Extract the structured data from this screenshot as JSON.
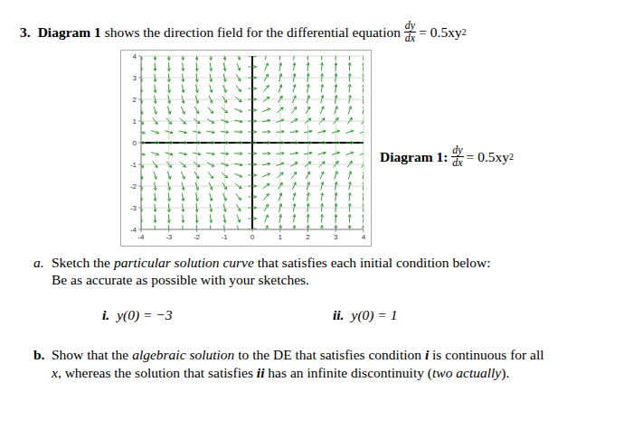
{
  "question": {
    "number": "3.",
    "segments": [
      {
        "text": "Diagram 1",
        "style": "bold"
      },
      {
        "text": " shows the direction field for the differential equation ",
        "style": "plain"
      }
    ],
    "equation": {
      "numerator": "dy",
      "denominator": "dx",
      "rhs": "= 0.5xy",
      "exponent": "2"
    }
  },
  "diagram_label": {
    "segments": [
      {
        "text": "Diagram 1: ",
        "style": "bold"
      }
    ],
    "equation": {
      "numerator": "dy",
      "denominator": "dx",
      "rhs": "= 0.5xy",
      "exponent": "2"
    }
  },
  "chart_data": {
    "type": "slope_field",
    "color": "#3a9a3a",
    "marker": "arrow",
    "grid": true,
    "x": [
      -4,
      -3.5,
      -3,
      -2.5,
      -2,
      -1.5,
      -1,
      -0.5,
      0,
      0.5,
      1,
      1.5,
      2,
      2.5,
      3,
      3.5,
      4
    ],
    "y": [
      4,
      3.5,
      3,
      2.5,
      2,
      1.5,
      1,
      0.5,
      0,
      -0.5,
      -1,
      -1.5,
      -2,
      -2.5,
      -3,
      -3.5,
      -4
    ],
    "slopes": [
      [
        -32,
        -28,
        -24,
        -20,
        -16,
        -12,
        -8,
        -4,
        0,
        4,
        8,
        12,
        16,
        20,
        24,
        28,
        32
      ],
      [
        -24.5,
        -21.44,
        -18.38,
        -15.31,
        -12.25,
        -9.19,
        -6.13,
        -3.06,
        0,
        3.06,
        6.13,
        9.19,
        12.25,
        15.31,
        18.38,
        21.44,
        24.5
      ],
      [
        -18,
        -15.75,
        -13.5,
        -11.25,
        -9,
        -6.75,
        -4.5,
        -2.25,
        0,
        2.25,
        4.5,
        6.75,
        9,
        11.25,
        13.5,
        15.75,
        18
      ],
      [
        -12.5,
        -10.94,
        -9.38,
        -7.81,
        -6.25,
        -4.69,
        -3.13,
        -1.56,
        0,
        1.56,
        3.13,
        4.69,
        6.25,
        7.81,
        9.38,
        10.94,
        12.5
      ],
      [
        -8,
        -7,
        -6,
        -5,
        -4,
        -3,
        -2,
        -1,
        0,
        1,
        2,
        3,
        4,
        5,
        6,
        7,
        8
      ],
      [
        -4.5,
        -3.94,
        -3.38,
        -2.81,
        -2.25,
        -1.69,
        -1.13,
        -0.56,
        0,
        0.56,
        1.13,
        1.69,
        2.25,
        2.81,
        3.38,
        3.94,
        4.5
      ],
      [
        -2,
        -1.75,
        -1.5,
        -1.25,
        -1,
        -0.75,
        -0.5,
        -0.25,
        0,
        0.25,
        0.5,
        0.75,
        1,
        1.25,
        1.5,
        1.75,
        2
      ],
      [
        -0.5,
        -0.44,
        -0.38,
        -0.31,
        -0.25,
        -0.19,
        -0.13,
        -0.06,
        0,
        0.06,
        0.13,
        0.19,
        0.25,
        0.31,
        0.38,
        0.44,
        0.5
      ],
      [
        0,
        0,
        0,
        0,
        0,
        0,
        0,
        0,
        0,
        0,
        0,
        0,
        0,
        0,
        0,
        0,
        0
      ],
      [
        -0.5,
        -0.44,
        -0.38,
        -0.31,
        -0.25,
        -0.19,
        -0.13,
        -0.06,
        0,
        0.06,
        0.13,
        0.19,
        0.25,
        0.31,
        0.38,
        0.44,
        0.5
      ],
      [
        -2,
        -1.75,
        -1.5,
        -1.25,
        -1,
        -0.75,
        -0.5,
        -0.25,
        0,
        0.25,
        0.5,
        0.75,
        1,
        1.25,
        1.5,
        1.75,
        2
      ],
      [
        -4.5,
        -3.94,
        -3.38,
        -2.81,
        -2.25,
        -1.69,
        -1.13,
        -0.56,
        0,
        0.56,
        1.13,
        1.69,
        2.25,
        2.81,
        3.38,
        3.94,
        4.5
      ],
      [
        -8,
        -7,
        -6,
        -5,
        -4,
        -3,
        -2,
        -1,
        0,
        1,
        2,
        3,
        4,
        5,
        6,
        7,
        8
      ],
      [
        -12.5,
        -10.94,
        -9.38,
        -7.81,
        -6.25,
        -4.69,
        -3.13,
        -1.56,
        0,
        1.56,
        3.13,
        4.69,
        6.25,
        7.81,
        9.38,
        10.94,
        12.5
      ],
      [
        -18,
        -15.75,
        -13.5,
        -11.25,
        -9,
        -6.75,
        -4.5,
        -2.25,
        0,
        2.25,
        4.5,
        6.75,
        9,
        11.25,
        13.5,
        15.75,
        18
      ],
      [
        -24.5,
        -21.44,
        -18.38,
        -15.31,
        -12.25,
        -9.19,
        -6.13,
        -3.06,
        0,
        3.06,
        6.13,
        9.19,
        12.25,
        15.31,
        18.38,
        21.44,
        24.5
      ],
      [
        -32,
        -28,
        -24,
        -20,
        -16,
        -12,
        -8,
        -4,
        0,
        4,
        8,
        12,
        16,
        20,
        24,
        28,
        32
      ]
    ],
    "xlim": [
      -4,
      4
    ],
    "ylim": [
      -4,
      4
    ],
    "xticks": [
      -4,
      -3,
      -2,
      -1,
      0,
      1,
      2,
      3,
      4
    ],
    "yticks": [
      -4,
      -3,
      -2,
      -1,
      0,
      1,
      2,
      3,
      4
    ]
  },
  "part_a": {
    "label": "a.",
    "lines": [
      [
        {
          "text": "Sketch the ",
          "style": "plain"
        },
        {
          "text": "particular solution curve",
          "style": "italic"
        },
        {
          "text": " that satisfies each initial condition below:",
          "style": "plain"
        }
      ],
      [
        {
          "text": "Be as accurate as possible with your sketches.",
          "style": "plain"
        }
      ]
    ],
    "conditions": [
      {
        "label": "i.",
        "text": "y(0) = −3"
      },
      {
        "label": "ii.",
        "text": "y(0) = 1"
      }
    ]
  },
  "part_b": {
    "label": "b.",
    "lines": [
      [
        {
          "text": "Show that the ",
          "style": "plain"
        },
        {
          "text": "algebraic solution",
          "style": "italic"
        },
        {
          "text": " to the DE that satisfies condition ",
          "style": "plain"
        },
        {
          "text": "i",
          "style": "bold_italic"
        },
        {
          "text": " is continuous for all",
          "style": "plain"
        }
      ],
      [
        {
          "text": "x",
          "style": "italic"
        },
        {
          "text": ", whereas the solution that satisfies ",
          "style": "plain"
        },
        {
          "text": "ii",
          "style": "bold_italic"
        },
        {
          "text": " has an infinite discontinuity (",
          "style": "plain"
        },
        {
          "text": "two actually",
          "style": "italic"
        },
        {
          "text": ").",
          "style": "plain"
        }
      ]
    ]
  }
}
